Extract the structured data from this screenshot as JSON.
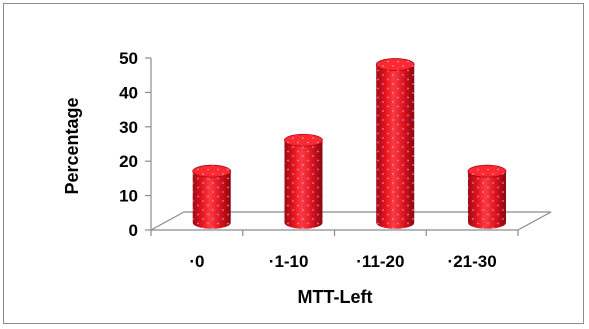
{
  "chart_data": {
    "type": "bar",
    "style": "3d-cylinder",
    "title": "",
    "xlabel": "MTT-Left",
    "ylabel": "Percentage",
    "categories": [
      "·0",
      "·1-10",
      "·11-20",
      "·21-30"
    ],
    "values": [
      15,
      24,
      46,
      15
    ],
    "ylim": [
      0,
      50
    ],
    "yticks": [
      0,
      10,
      20,
      30,
      40,
      50
    ],
    "grid": false,
    "legend": "none",
    "bar_color": "#e8141c",
    "bar_dot_color": "#c9a0ff"
  }
}
